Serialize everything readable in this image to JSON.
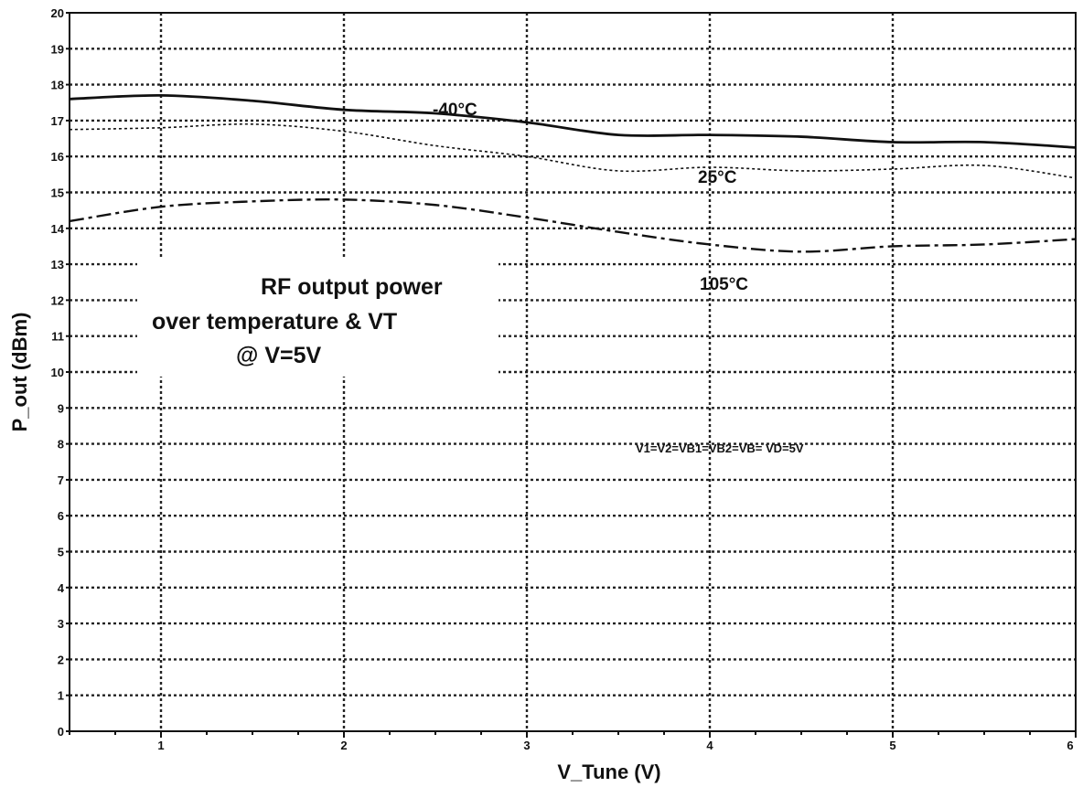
{
  "chart_data": {
    "type": "line",
    "xlabel": "V_Tune (V)",
    "ylabel": "P_out (dBm)",
    "xlim": [
      0.5,
      6
    ],
    "ylim": [
      0,
      20
    ],
    "xticks": [
      1,
      2,
      3,
      4,
      5,
      6
    ],
    "yticks": [
      0,
      1,
      2,
      3,
      4,
      5,
      6,
      7,
      8,
      9,
      10,
      11,
      12,
      13,
      14,
      15,
      16,
      17,
      18,
      19,
      20
    ],
    "grid": true,
    "legend": "inline labels",
    "series": [
      {
        "name": "-40°C",
        "style": "solid",
        "x": [
          0.5,
          1.0,
          1.5,
          2.0,
          2.5,
          3.0,
          3.5,
          4.0,
          4.5,
          5.0,
          5.5,
          6.0
        ],
        "y": [
          17.6,
          17.7,
          17.55,
          17.3,
          17.2,
          16.95,
          16.6,
          16.6,
          16.55,
          16.4,
          16.4,
          16.25
        ]
      },
      {
        "name": "25°C",
        "style": "dotted",
        "x": [
          0.5,
          1.0,
          1.5,
          2.0,
          2.5,
          3.0,
          3.5,
          4.0,
          4.5,
          5.0,
          5.5,
          6.0
        ],
        "y": [
          16.75,
          16.8,
          16.9,
          16.7,
          16.3,
          16.0,
          15.6,
          15.7,
          15.6,
          15.65,
          15.75,
          15.4
        ]
      },
      {
        "name": "105°C",
        "style": "dashdot",
        "x": [
          0.5,
          1.0,
          1.5,
          2.0,
          2.5,
          3.0,
          3.5,
          4.0,
          4.5,
          5.0,
          5.5,
          6.0
        ],
        "y": [
          14.2,
          14.6,
          14.75,
          14.8,
          14.65,
          14.3,
          13.9,
          13.55,
          13.35,
          13.5,
          13.55,
          13.7
        ]
      }
    ],
    "annotations": {
      "main": [
        "RF output power",
        "over temperature & VT",
        "@ V=5V"
      ],
      "conditions": "V1=V2=VB1=VB2=VB= VD=5V"
    }
  }
}
